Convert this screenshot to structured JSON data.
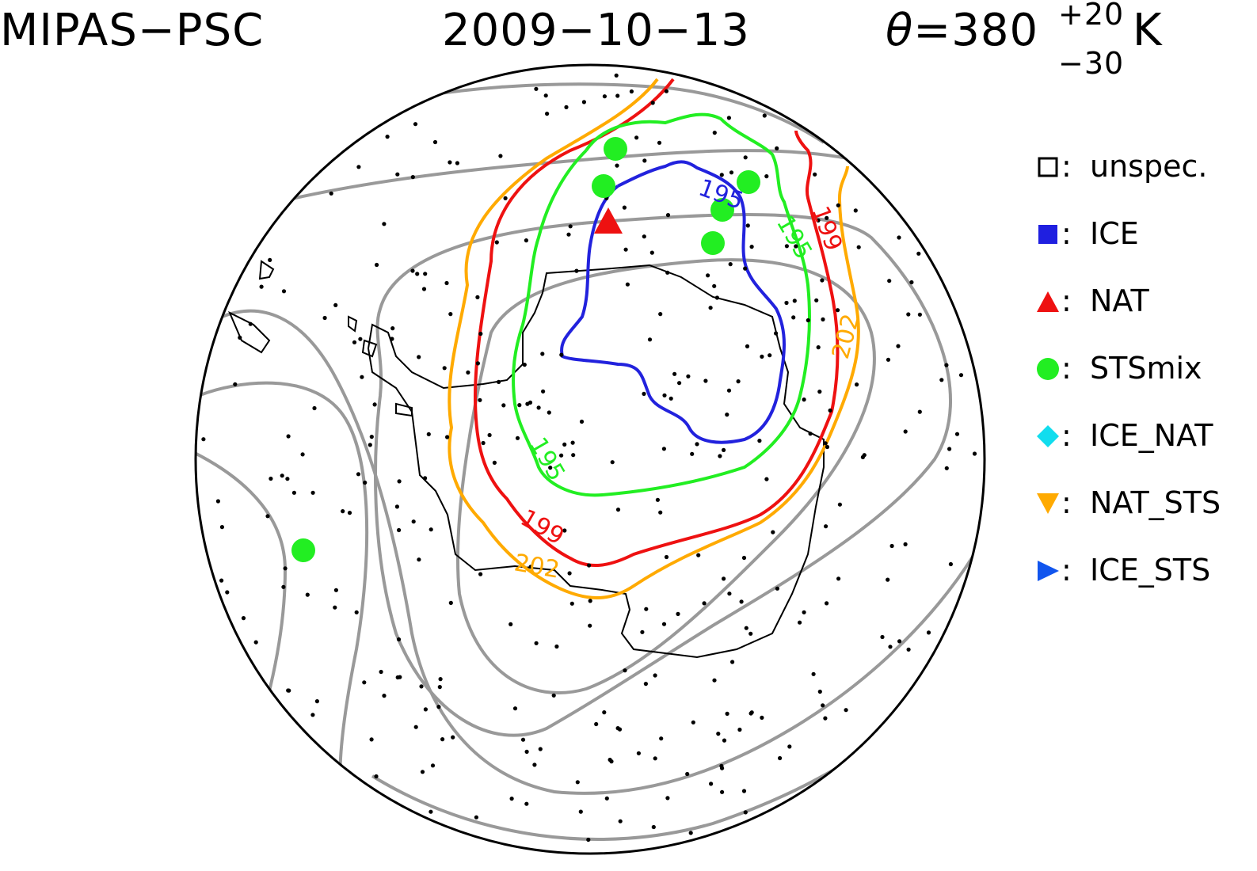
{
  "header": {
    "instrument": "MIPAS−PSC",
    "date": "2009−10−13",
    "theta_symbol": "θ",
    "theta_value": "=380",
    "theta_upper": "+20",
    "theta_lower": "−30",
    "theta_unit": "K"
  },
  "legend": [
    {
      "symbol": "open-square-icon",
      "label": "unspec.",
      "color": "#000000"
    },
    {
      "symbol": "filled-square-icon",
      "label": "ICE",
      "color": "#1f1fe0"
    },
    {
      "symbol": "up-triangle-icon",
      "label": "NAT",
      "color": "#ee1111"
    },
    {
      "symbol": "circle-icon",
      "label": "STSmix",
      "color": "#22ee22"
    },
    {
      "symbol": "diamond-icon",
      "label": "ICE_NAT",
      "color": "#11ddee"
    },
    {
      "symbol": "down-triangle-icon",
      "label": "NAT_STS",
      "color": "#ffaa00"
    },
    {
      "symbol": "right-triangle-icon",
      "label": "ICE_STS",
      "color": "#1155ee"
    }
  ],
  "contours": [
    {
      "value": "195",
      "color": "#2222dd"
    },
    {
      "value": "195",
      "color": "#22ee22"
    },
    {
      "value": "199",
      "color": "#ee1111"
    },
    {
      "value": "202",
      "color": "#ffaa00"
    }
  ],
  "colors": {
    "background_contour": "#999999",
    "coastline": "#000000"
  }
}
